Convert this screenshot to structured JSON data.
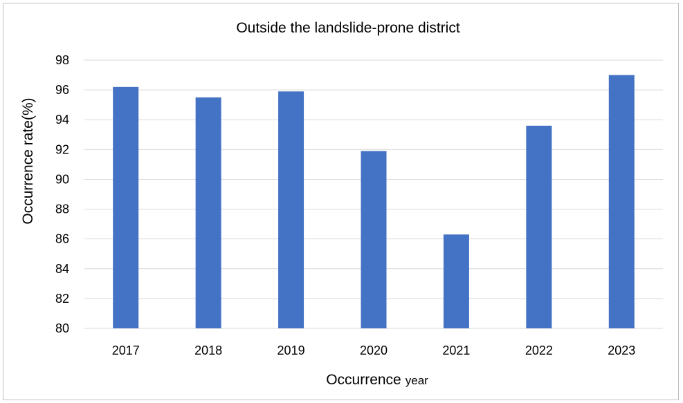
{
  "chart_data": {
    "type": "bar",
    "title": "Outside the landslide-prone district",
    "xlabel_main": "Occurrence",
    "xlabel_unit": "year",
    "ylabel": "Occurrence rate(%)",
    "categories": [
      "2017",
      "2018",
      "2019",
      "2020",
      "2021",
      "2022",
      "2023"
    ],
    "values": [
      96.2,
      95.5,
      95.9,
      91.9,
      86.3,
      93.6,
      97.0
    ],
    "ylim": [
      80,
      98
    ],
    "yticks": [
      80,
      82,
      84,
      86,
      88,
      90,
      92,
      94,
      96,
      98
    ],
    "grid": true,
    "legend": "none",
    "bar_color": "#4472c4",
    "grid_color": "#d9d9d9"
  }
}
